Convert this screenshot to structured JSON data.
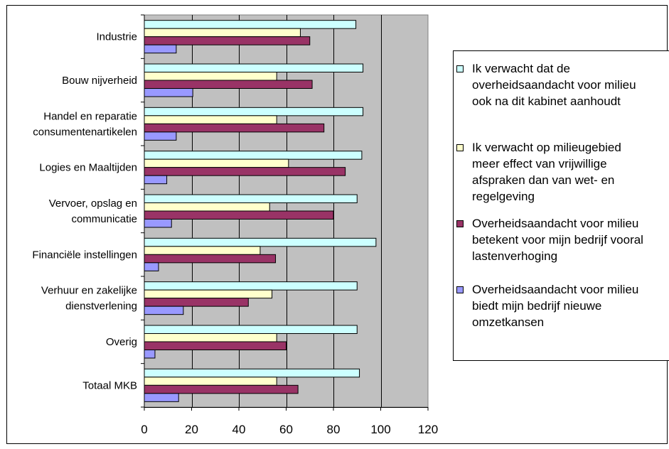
{
  "chart_data": {
    "type": "bar",
    "orientation": "horizontal",
    "title": "",
    "xlabel": "",
    "ylabel": "",
    "xlim": [
      0,
      120
    ],
    "x_ticks": [
      0,
      20,
      40,
      60,
      80,
      100,
      120
    ],
    "grid": true,
    "legend_position": "right",
    "categories": [
      [
        "Industrie"
      ],
      [
        "Bouw nijverheid"
      ],
      [
        "Handel en reparatie",
        "consumentenartikelen"
      ],
      [
        "Logies en Maaltijden"
      ],
      [
        "Vervoer, opslag en",
        "communicatie"
      ],
      [
        "Financiële instellingen"
      ],
      [
        "Verhuur en zakelijke",
        "dienstverlening"
      ],
      [
        "Overig"
      ],
      [
        "Totaal MKB"
      ]
    ],
    "series": [
      {
        "name": "Ik verwacht dat de overheidsaandacht voor milieu ook na dit kabinet aanhoudt",
        "legend_lines": [
          "Ik verwacht dat de",
          "overheidsaandacht voor milieu",
          "ook na dit kabinet aanhoudt"
        ],
        "color": "#ccffff",
        "values": [
          89.5,
          92.5,
          92.5,
          92,
          90,
          98,
          90,
          90,
          91
        ]
      },
      {
        "name": "Ik verwacht op milieugebied meer effect van vrijwillige afspraken dan van wet- en regelgeving",
        "legend_lines": [
          "Ik verwacht op milieugebied",
          "meer effect van vrijwillige",
          "afspraken dan van wet- en",
          "regelgeving"
        ],
        "color": "#ffffcc",
        "values": [
          66,
          56,
          56,
          61,
          53,
          49,
          54,
          56,
          56
        ]
      },
      {
        "name": "Overheidsaandacht voor milieu betekent voor mijn bedrijf vooral lastenverhoging",
        "legend_lines": [
          "Overheidsaandacht voor milieu",
          "betekent voor mijn bedrijf vooral",
          "lastenverhoging"
        ],
        "color": "#993366",
        "values": [
          70,
          71,
          76,
          85,
          80,
          55.5,
          44,
          60,
          65
        ]
      },
      {
        "name": "Overheidsaandacht voor milieu biedt mijn bedrijf nieuwe omzetkansen",
        "legend_lines": [
          "Overheidsaandacht voor milieu",
          "biedt mijn bedrijf nieuwe",
          "omzetkansen"
        ],
        "color": "#9999ff",
        "values": [
          13.5,
          20.5,
          13.5,
          9.5,
          11.5,
          6,
          16.5,
          4.5,
          14.5
        ]
      }
    ]
  }
}
